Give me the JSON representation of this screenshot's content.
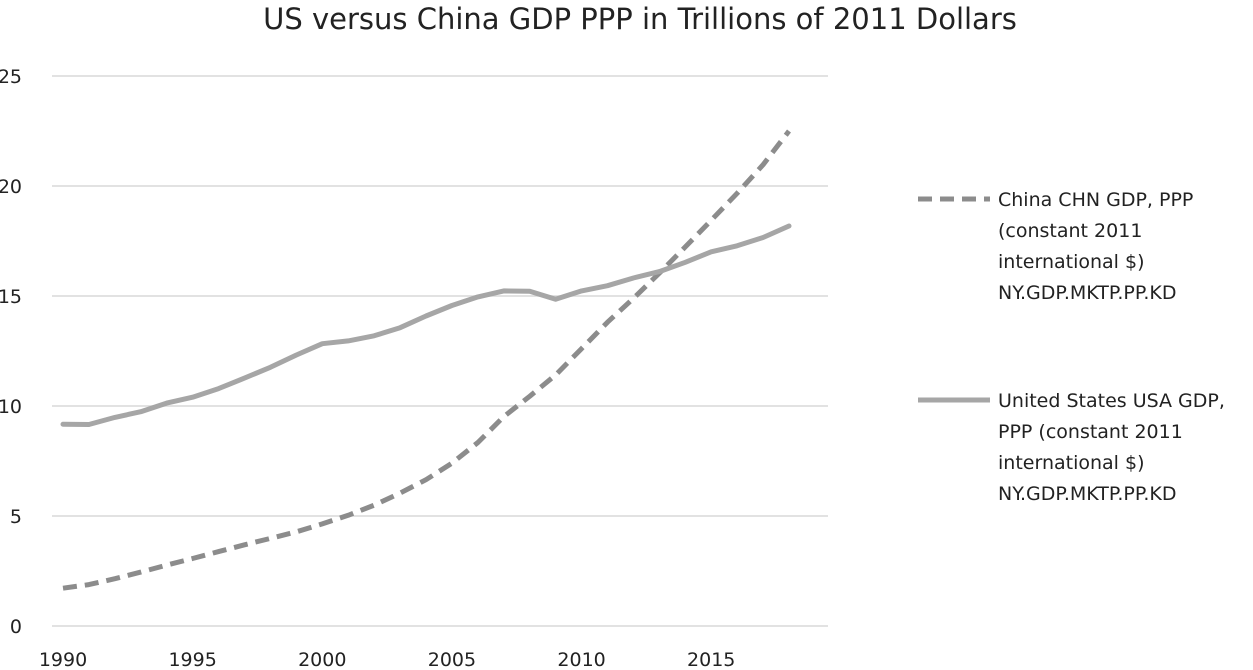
{
  "chart_data": {
    "type": "line",
    "title": "US versus China GDP PPP in Trillions of 2011 Dollars",
    "xlabel": "",
    "ylabel": "",
    "xlim": [
      1990,
      2018
    ],
    "ylim": [
      0,
      25
    ],
    "grid": "horizontal",
    "legend_position": "right",
    "x_ticks": [
      1990,
      1995,
      2000,
      2005,
      2010,
      2015
    ],
    "y_ticks": [
      0,
      5,
      10,
      15,
      20,
      25
    ],
    "x": [
      1990,
      1991,
      1992,
      1993,
      1994,
      1995,
      1996,
      1997,
      1998,
      1999,
      2000,
      2001,
      2002,
      2003,
      2004,
      2005,
      2006,
      2007,
      2008,
      2009,
      2010,
      2011,
      2012,
      2013,
      2014,
      2015,
      2016,
      2017,
      2018
    ],
    "series": [
      {
        "name": "China CHN GDP, PPP (constant 2011 international $) NY.GDP.MKTP.PP.KD",
        "legend_lines": [
          "China CHN GDP, PPP",
          "(constant 2011",
          "international $)",
          "NY.GDP.MKTP.PP.KD"
        ],
        "style": "dashed",
        "color": "#8c8c8c",
        "values": [
          1.72,
          1.88,
          2.15,
          2.45,
          2.77,
          3.07,
          3.38,
          3.69,
          3.98,
          4.28,
          4.64,
          5.03,
          5.49,
          6.04,
          6.65,
          7.4,
          8.34,
          9.52,
          10.44,
          11.41,
          12.61,
          13.81,
          14.89,
          16.04,
          17.23,
          18.44,
          19.67,
          20.97,
          22.5
        ]
      },
      {
        "name": "United States USA GDP, PPP (constant 2011 international $) NY.GDP.MKTP.PP.KD",
        "legend_lines": [
          "United States USA GDP,",
          "PPP (constant 2011",
          "international $)",
          "NY.GDP.MKTP.PP.KD"
        ],
        "style": "solid",
        "color": "#a6a6a6",
        "values": [
          9.17,
          9.16,
          9.48,
          9.74,
          10.13,
          10.4,
          10.79,
          11.27,
          11.76,
          12.32,
          12.83,
          12.96,
          13.19,
          13.56,
          14.09,
          14.57,
          14.96,
          15.23,
          15.22,
          14.85,
          15.23,
          15.47,
          15.82,
          16.11,
          16.53,
          17.01,
          17.28,
          17.66,
          18.18
        ]
      }
    ]
  }
}
